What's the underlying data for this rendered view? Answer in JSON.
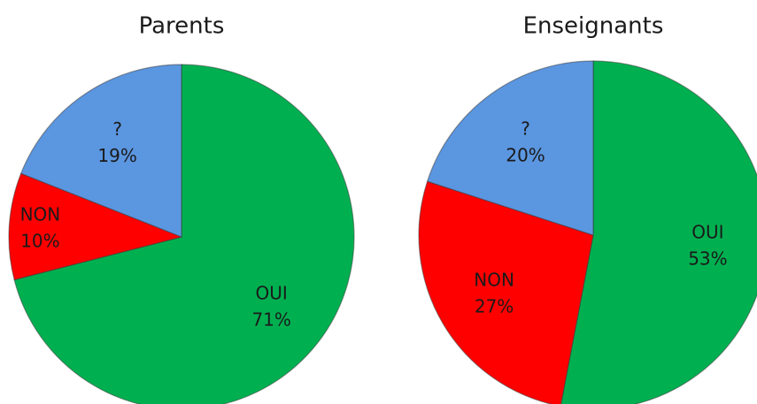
{
  "chart_data": [
    {
      "type": "pie",
      "title": "Parents",
      "categories": [
        "OUI",
        "NON",
        "?"
      ],
      "values": [
        71,
        10,
        19
      ],
      "value_labels": [
        "71%",
        "10%",
        "19%"
      ],
      "colors": [
        "#00b050",
        "#ff0000",
        "#5b96e0"
      ]
    },
    {
      "type": "pie",
      "title": "Enseignants",
      "categories": [
        "OUI",
        "NON",
        "?"
      ],
      "values": [
        53,
        27,
        20
      ],
      "value_labels": [
        "53%",
        "27%",
        "20%"
      ],
      "colors": [
        "#00b050",
        "#ff0000",
        "#5b96e0"
      ]
    }
  ]
}
